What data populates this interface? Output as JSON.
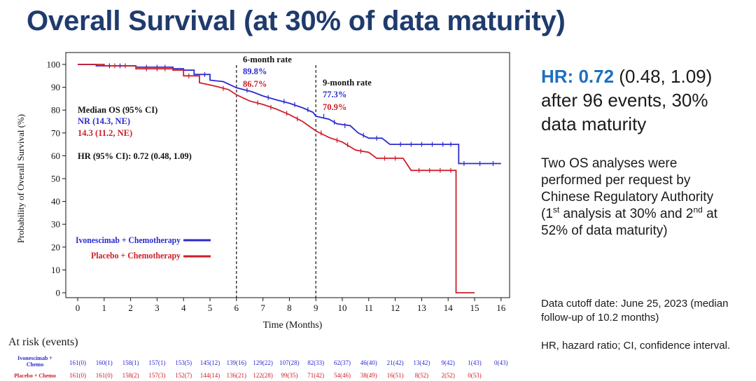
{
  "title": "Overall Survival (at 30% of data maturity)",
  "right_panel": {
    "hr_label": "HR:",
    "hr_value": "0.72",
    "hr_ci": "(0.48, 1.09)",
    "hr_line2": "after 96 events, 30%",
    "hr_line3": "data maturity",
    "note_line1": "Two OS analyses were",
    "note_line2": "performed per request by",
    "note_line3": "Chinese Regulatory Authority",
    "note_a1": "(1",
    "note_sup1": "st",
    "note_a2": " analysis at 30% and 2",
    "note_sup2": "nd",
    "note_a3": " at",
    "note_line5": "52% of data maturity)",
    "cutoff": "Data cutoff date: June 25, 2023 (median follow-up of 10.2 months)",
    "abbreviations": "HR, hazard ratio; CI, confidence interval."
  },
  "chart_data": {
    "type": "line",
    "subtype": "kaplan-meier",
    "xlabel": "Time (Months)",
    "ylabel": "Probability of  Overall Survival (%)",
    "xlim": [
      0,
      16
    ],
    "ylim": [
      0,
      100
    ],
    "xticks": [
      0,
      1,
      2,
      3,
      4,
      5,
      6,
      7,
      8,
      9,
      10,
      11,
      12,
      13,
      14,
      15,
      16
    ],
    "yticks": [
      0,
      10,
      20,
      30,
      40,
      50,
      60,
      70,
      80,
      90,
      100
    ],
    "grid": false,
    "colors": {
      "ivo": "#2b2bd0",
      "pbo": "#cc1f2a",
      "ref": "#111111"
    },
    "series": [
      {
        "name": "Ivonescimab + Chemotherapy",
        "color": "#2b2bd0",
        "points": [
          [
            0,
            100
          ],
          [
            0.7,
            100
          ],
          [
            0.7,
            99.4
          ],
          [
            2.2,
            99.4
          ],
          [
            2.2,
            98.8
          ],
          [
            3.6,
            98.8
          ],
          [
            3.6,
            98.1
          ],
          [
            4.0,
            98.1
          ],
          [
            4.0,
            97.5
          ],
          [
            4.4,
            97.5
          ],
          [
            4.4,
            95.6
          ],
          [
            5.0,
            95.6
          ],
          [
            5.0,
            93.1
          ],
          [
            5.5,
            92.5
          ],
          [
            6.0,
            89.8
          ],
          [
            6.6,
            88.0
          ],
          [
            7.0,
            86.2
          ],
          [
            7.5,
            84.5
          ],
          [
            8.0,
            83.0
          ],
          [
            8.5,
            81.0
          ],
          [
            8.9,
            79.0
          ],
          [
            9.0,
            77.3
          ],
          [
            9.5,
            76.0
          ],
          [
            9.8,
            74.0
          ],
          [
            10.3,
            73.2
          ],
          [
            10.6,
            70.0
          ],
          [
            11.0,
            67.7
          ],
          [
            11.5,
            67.7
          ],
          [
            11.8,
            65.0
          ],
          [
            14.4,
            65.0
          ],
          [
            14.4,
            56.6
          ],
          [
            16.0,
            56.6
          ]
        ]
      },
      {
        "name": "Placebo + Chemotherapy",
        "color": "#cc1f2a",
        "points": [
          [
            0,
            100
          ],
          [
            1.0,
            100
          ],
          [
            1.0,
            99.4
          ],
          [
            2.2,
            99.4
          ],
          [
            2.2,
            98.1
          ],
          [
            3.6,
            98.1
          ],
          [
            3.6,
            97.5
          ],
          [
            4.0,
            97.5
          ],
          [
            4.0,
            95.0
          ],
          [
            4.6,
            95.0
          ],
          [
            4.6,
            92.0
          ],
          [
            5.2,
            90.5
          ],
          [
            5.7,
            89.0
          ],
          [
            6.0,
            86.7
          ],
          [
            6.5,
            84.0
          ],
          [
            7.0,
            82.5
          ],
          [
            7.5,
            80.5
          ],
          [
            8.0,
            78.0
          ],
          [
            8.5,
            75.0
          ],
          [
            9.0,
            70.9
          ],
          [
            9.5,
            68.0
          ],
          [
            10.0,
            66.0
          ],
          [
            10.5,
            62.5
          ],
          [
            11.0,
            61.5
          ],
          [
            11.3,
            58.9
          ],
          [
            12.3,
            58.9
          ],
          [
            12.6,
            53.6
          ],
          [
            14.3,
            53.6
          ],
          [
            14.3,
            0
          ],
          [
            15.0,
            0
          ]
        ]
      }
    ],
    "censor_marks": {
      "ivo": [
        [
          1.2,
          99.4
        ],
        [
          1.6,
          99.4
        ],
        [
          2.6,
          98.8
        ],
        [
          3.0,
          98.8
        ],
        [
          3.3,
          98.8
        ],
        [
          4.8,
          95.6
        ],
        [
          6.4,
          88.7
        ],
        [
          7.2,
          85.5
        ],
        [
          7.8,
          83.8
        ],
        [
          8.2,
          82.4
        ],
        [
          8.7,
          80.2
        ],
        [
          9.3,
          77.3
        ],
        [
          9.7,
          74.7
        ],
        [
          10.1,
          73.2
        ],
        [
          10.8,
          69.0
        ],
        [
          11.3,
          67.7
        ],
        [
          12.2,
          65.0
        ],
        [
          12.6,
          65.0
        ],
        [
          13.0,
          65.0
        ],
        [
          13.4,
          65.0
        ],
        [
          13.8,
          65.0
        ],
        [
          14.1,
          65.0
        ],
        [
          14.6,
          56.6
        ],
        [
          15.2,
          56.6
        ],
        [
          15.7,
          56.6
        ]
      ],
      "pbo": [
        [
          1.4,
          99.4
        ],
        [
          1.8,
          99.4
        ],
        [
          2.6,
          98.1
        ],
        [
          3.0,
          98.1
        ],
        [
          3.3,
          98.1
        ],
        [
          4.2,
          95.0
        ],
        [
          5.5,
          89.5
        ],
        [
          6.8,
          83.2
        ],
        [
          7.3,
          81.2
        ],
        [
          7.9,
          78.6
        ],
        [
          8.3,
          76.2
        ],
        [
          9.2,
          70.0
        ],
        [
          9.8,
          66.8
        ],
        [
          10.2,
          64.8
        ],
        [
          10.7,
          62.0
        ],
        [
          11.6,
          58.9
        ],
        [
          12.0,
          58.9
        ],
        [
          12.9,
          53.6
        ],
        [
          13.3,
          53.6
        ],
        [
          13.7,
          53.6
        ],
        [
          14.1,
          53.6
        ]
      ]
    },
    "reference_lines": [
      {
        "x": 6,
        "header": "6-month rate",
        "ivo": "89.8%",
        "pbo": "86.7%"
      },
      {
        "x": 9,
        "header": "9-month rate",
        "ivo": "77.3%",
        "pbo": "70.9%"
      }
    ],
    "annotations": {
      "median_header": "Median OS (95% CI)",
      "median_ivo": "NR (14.3, NE)",
      "median_pbo": "14.3 (11.2, NE)",
      "hr_text": "HR (95% CI): 0.72 (0.48, 1.09)"
    },
    "legend": {
      "placement": "bottom-left",
      "entries": [
        {
          "label": "Ivonescimab + Chemotherapy",
          "color": "#2b2bd0"
        },
        {
          "label": "Placebo + Chemotherapy",
          "color": "#cc1f2a"
        }
      ]
    },
    "at_risk": {
      "title": "At risk (events)",
      "rows": [
        {
          "label_lines": [
            "Ivonescimab +",
            "Chemo"
          ],
          "color": "#2b2bd0",
          "values": [
            "161(0)",
            "160(1)",
            "158(1)",
            "157(1)",
            "153(5)",
            "145(12)",
            "139(16)",
            "129(22)",
            "107(28)",
            "82(33)",
            "62(37)",
            "46(40)",
            "21(42)",
            "13(42)",
            "9(42)",
            "1(43)",
            "0(43)"
          ]
        },
        {
          "label_lines": [
            "Placebo + Chemo"
          ],
          "color": "#cc1f2a",
          "values": [
            "161(0)",
            "161(0)",
            "158(2)",
            "157(3)",
            "152(7)",
            "144(14)",
            "136(21)",
            "122(28)",
            "99(35)",
            "71(42)",
            "54(46)",
            "38(49)",
            "16(51)",
            "8(52)",
            "2(52)",
            "0(53)",
            ""
          ]
        }
      ]
    }
  }
}
